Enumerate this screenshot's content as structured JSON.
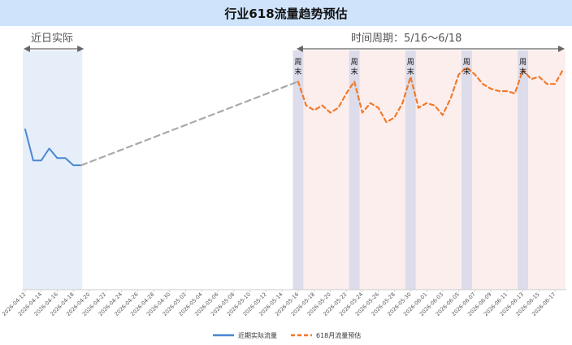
{
  "title": "行业618流量趋势预估",
  "annotations": {
    "recent_label": "近日实际",
    "period_label": "时间周期：5/16～6/18",
    "weekend_label": "周末"
  },
  "legend": {
    "actual": "近期实际流量",
    "forecast": "618月流量预估"
  },
  "colors": {
    "actual": "#4a88d0",
    "forecast": "#f07a2a",
    "bridge": "#aaaaaa",
    "recent_band": "#e6eefa",
    "period_band": "#fdeeee",
    "weekend_band": "#dcdcea",
    "title_bg": "#cfe3fb"
  },
  "chart_data": {
    "type": "line",
    "title": "行业618流量趋势预估",
    "xlabel": "",
    "ylabel": "",
    "ylim": [
      0,
      100
    ],
    "grid": false,
    "legend_position": "bottom",
    "x_range": [
      "2026-04-12",
      "2026-06-18"
    ],
    "tick_labels": [
      "2026-04-12",
      "2026-04-14",
      "2026-04-16",
      "2026-04-18",
      "2026-04-20",
      "2026-04-22",
      "2026-04-24",
      "2026-04-26",
      "2026-04-28",
      "2026-04-30",
      "2026-05-02",
      "2026-05-04",
      "2026-05-06",
      "2026-05-08",
      "2026-05-10",
      "2026-05-12",
      "2026-05-14",
      "2026-05-16",
      "2026-05-18",
      "2026-05-20",
      "2026-05-22",
      "2026-05-24",
      "2026-05-26",
      "2026-05-28",
      "2026-05-30",
      "2026-06-01",
      "2026-06-03",
      "2026-06-05",
      "2026-06-07",
      "2026-06-09",
      "2026-06-11",
      "2026-06-13",
      "2026-06-15",
      "2026-06-17"
    ],
    "recent_range": [
      "2026-04-12",
      "2026-04-19"
    ],
    "period_range": [
      "2026-05-16",
      "2026-06-18"
    ],
    "weekend_markers": [
      "2026-05-16",
      "2026-05-23",
      "2026-05-30",
      "2026-06-06",
      "2026-06-13"
    ],
    "series": [
      {
        "name": "近期实际流量",
        "style": "solid",
        "x": [
          "2026-04-12",
          "2026-04-13",
          "2026-04-14",
          "2026-04-15",
          "2026-04-16",
          "2026-04-17",
          "2026-04-18",
          "2026-04-19"
        ],
        "values": [
          67,
          54,
          54,
          59,
          55,
          55,
          52,
          52
        ]
      },
      {
        "style": "dashed",
        "x": [
          "2026-04-19",
          "2026-05-16"
        ],
        "values": [
          52,
          87
        ]
      },
      {
        "name": "618月流量预估",
        "style": "dashed",
        "x": [
          "2026-05-16",
          "2026-05-17",
          "2026-05-18",
          "2026-05-19",
          "2026-05-20",
          "2026-05-21",
          "2026-05-22",
          "2026-05-23",
          "2026-05-24",
          "2026-05-25",
          "2026-05-26",
          "2026-05-27",
          "2026-05-28",
          "2026-05-29",
          "2026-05-30",
          "2026-05-31",
          "2026-06-01",
          "2026-06-02",
          "2026-06-03",
          "2026-06-04",
          "2026-06-05",
          "2026-06-06",
          "2026-06-07",
          "2026-06-08",
          "2026-06-09",
          "2026-06-10",
          "2026-06-11",
          "2026-06-12",
          "2026-06-13",
          "2026-06-14",
          "2026-06-15",
          "2026-06-16",
          "2026-06-17",
          "2026-06-18"
        ],
        "values": [
          87,
          77,
          75,
          77,
          74,
          76,
          82,
          87,
          74,
          78,
          76,
          70,
          72,
          78,
          89,
          76,
          78,
          77,
          73,
          80,
          90,
          93,
          90,
          86,
          84,
          83,
          83,
          82,
          92,
          88,
          89,
          86,
          86,
          92
        ]
      }
    ]
  }
}
